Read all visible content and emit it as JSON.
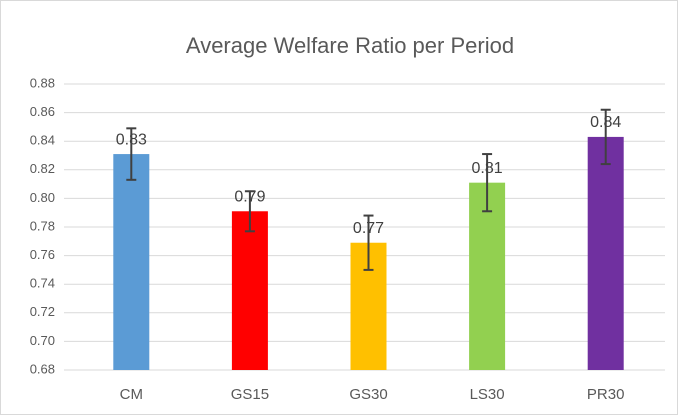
{
  "chart_data": {
    "type": "bar",
    "title": "Average Welfare Ratio per Period",
    "categories": [
      "CM",
      "GS15",
      "GS30",
      "LS30",
      "PR30"
    ],
    "values": [
      0.831,
      0.791,
      0.769,
      0.811,
      0.843
    ],
    "value_labels": [
      "0.83",
      "0.79",
      "0.77",
      "0.81",
      "0.84"
    ],
    "errors": [
      0.018,
      0.014,
      0.019,
      0.02,
      0.019
    ],
    "colors": [
      "#5b9bd5",
      "#ff0000",
      "#ffc000",
      "#92d050",
      "#7030a0"
    ],
    "ylim": [
      0.68,
      0.88
    ],
    "yticks": [
      0.68,
      {
        "value": 0.7,
        "label": "0.70"
      },
      0.72,
      0.74,
      0.76,
      0.78,
      {
        "value": 0.8,
        "label": "0.80"
      },
      0.82,
      0.84,
      0.86,
      0.88
    ],
    "grid": true
  }
}
